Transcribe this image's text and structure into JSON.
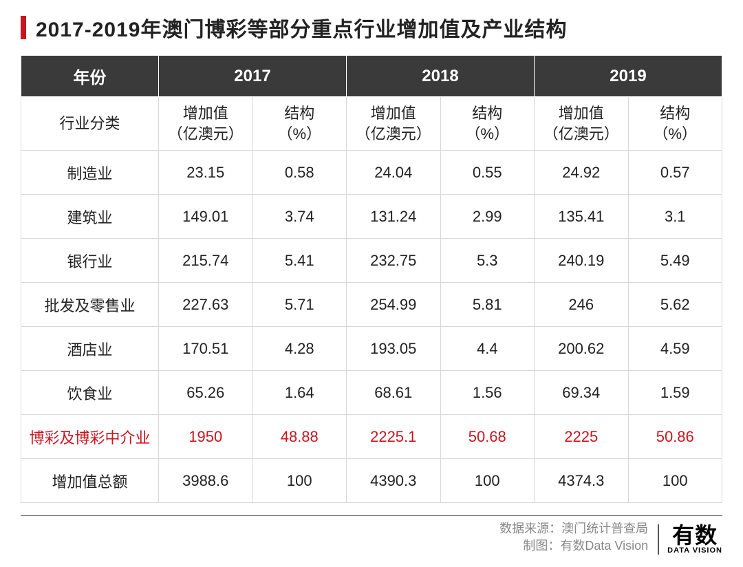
{
  "title": "2017-2019年澳门博彩等部分重点行业增加值及产业结构",
  "colors": {
    "accent": "#c9151e",
    "header_bg": "#3a3a3a",
    "header_fg": "#ffffff",
    "border": "#d9d9d9",
    "text": "#222222",
    "footer_text": "#888888"
  },
  "table": {
    "year_header_label": "年份",
    "years": [
      "2017",
      "2018",
      "2019"
    ],
    "category_header_label": "行业分类",
    "sub_col_labels": {
      "value": "增加值\n（亿澳元）",
      "pct": "结构\n（%）"
    },
    "rows": [
      {
        "category": "制造业",
        "cells": [
          "23.15",
          "0.58",
          "24.04",
          "0.55",
          "24.92",
          "0.57"
        ],
        "highlight": false
      },
      {
        "category": "建筑业",
        "cells": [
          "149.01",
          "3.74",
          "131.24",
          "2.99",
          "135.41",
          "3.1"
        ],
        "highlight": false
      },
      {
        "category": "银行业",
        "cells": [
          "215.74",
          "5.41",
          "232.75",
          "5.3",
          "240.19",
          "5.49"
        ],
        "highlight": false
      },
      {
        "category": "批发及零售业",
        "cells": [
          "227.63",
          "5.71",
          "254.99",
          "5.81",
          "246",
          "5.62"
        ],
        "highlight": false
      },
      {
        "category": "酒店业",
        "cells": [
          "170.51",
          "4.28",
          "193.05",
          "4.4",
          "200.62",
          "4.59"
        ],
        "highlight": false
      },
      {
        "category": "饮食业",
        "cells": [
          "65.26",
          "1.64",
          "68.61",
          "1.56",
          "69.34",
          "1.59"
        ],
        "highlight": false
      },
      {
        "category": "博彩及博彩中介业",
        "cells": [
          "1950",
          "48.88",
          "2225.1",
          "50.68",
          "2225",
          "50.86"
        ],
        "highlight": true
      },
      {
        "category": "增加值总额",
        "cells": [
          "3988.6",
          "100",
          "4390.3",
          "100",
          "4374.3",
          "100"
        ],
        "highlight": false
      }
    ]
  },
  "footer": {
    "source_label": "数据来源：澳门统计普查局",
    "credit_label": "制图：有数Data Vision",
    "logo_main": "有数",
    "logo_sub": "DATA VISION"
  }
}
